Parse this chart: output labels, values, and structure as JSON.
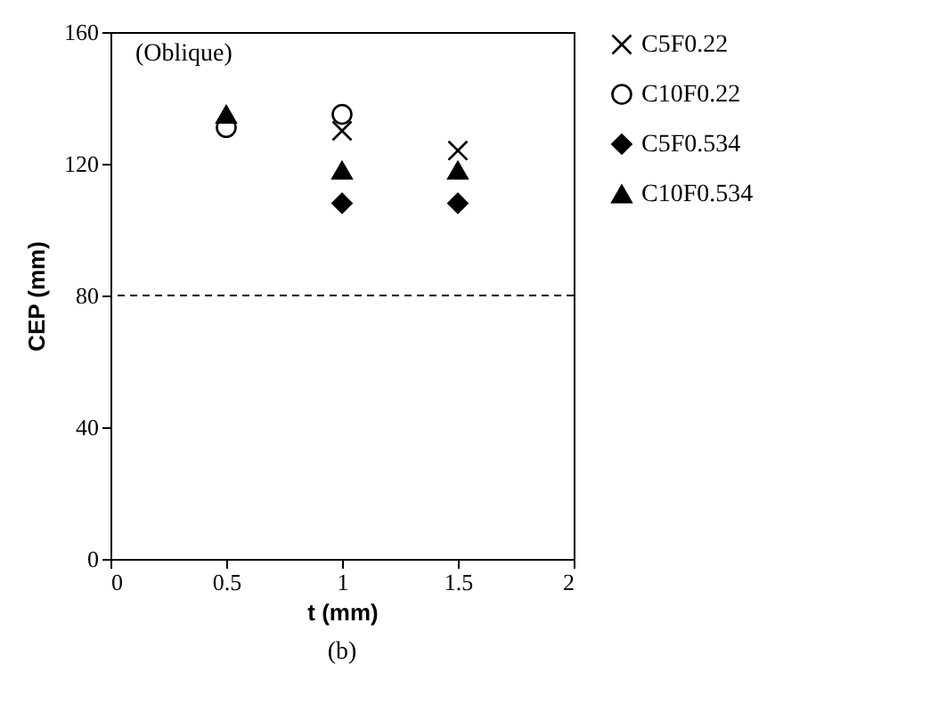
{
  "chart_data": {
    "type": "scatter",
    "xlabel": "t (mm)",
    "ylabel": "CEP (mm)",
    "x": [
      0.5,
      1,
      1.5
    ],
    "xlim": [
      0,
      2
    ],
    "xticks": [
      0,
      0.5,
      1,
      1.5,
      2
    ],
    "ylim": [
      0,
      160
    ],
    "yticks": [
      0,
      40,
      80,
      120,
      160
    ],
    "series": [
      {
        "name": "C5F0.22",
        "color": "#000000",
        "marker": "cross",
        "values": [
          null,
          130,
          124
        ]
      },
      {
        "name": "C10F0.22",
        "color": "#000000",
        "marker": "circle",
        "values": [
          131,
          135,
          null
        ]
      },
      {
        "name": "C5F0.534",
        "color": "#000000",
        "marker": "diamond",
        "values": [
          null,
          108,
          108
        ]
      },
      {
        "name": "C10F0.534",
        "color": "#000000",
        "marker": "triangle",
        "values": [
          135,
          118,
          118
        ]
      }
    ],
    "ref_lines": [
      {
        "axis": "y",
        "value": 80,
        "line_style": "dashed",
        "color": "#000000"
      }
    ],
    "annotations": [
      "(Oblique)",
      "(b)"
    ],
    "legend": "right",
    "grid": false
  }
}
